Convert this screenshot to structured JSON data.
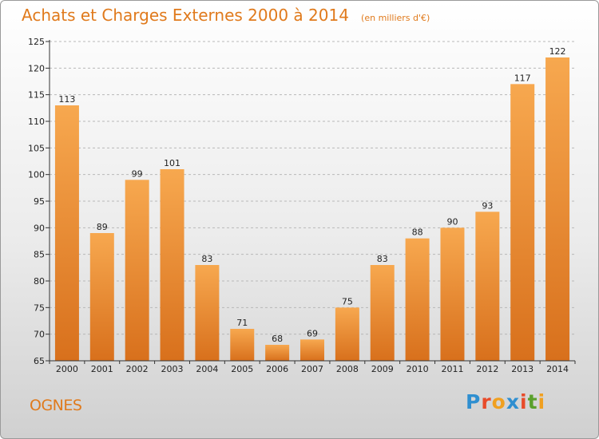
{
  "header": {
    "title": "Achats et Charges Externes 2000 à 2014",
    "unit": "(en milliers d'€)"
  },
  "footer": {
    "town": "OGNES",
    "brand": "Proxiti",
    "brand_letters": [
      {
        "ch": "P",
        "color": "#2f8fd0"
      },
      {
        "ch": "r",
        "color": "#e84b2a"
      },
      {
        "ch": "o",
        "color": "#f0a020"
      },
      {
        "ch": "x",
        "color": "#2f8fd0"
      },
      {
        "ch": "i",
        "color": "#e84b2a"
      },
      {
        "ch": "t",
        "color": "#5aa02c"
      },
      {
        "ch": "i",
        "color": "#f0a020"
      }
    ]
  },
  "colors": {
    "bar_light": "#f7a84f",
    "bar_dark": "#d8701c",
    "axis": "#333333",
    "grid": "#b8b8b8",
    "title": "#e07a1c"
  },
  "chart_data": {
    "type": "bar",
    "title": "Achats et Charges Externes 2000 à 2014",
    "subtitle": "(en milliers d'€)",
    "xlabel": "",
    "ylabel": "",
    "categories": [
      "2000",
      "2001",
      "2002",
      "2003",
      "2004",
      "2005",
      "2006",
      "2007",
      "2008",
      "2009",
      "2010",
      "2011",
      "2012",
      "2013",
      "2014"
    ],
    "values": [
      113,
      89,
      99,
      101,
      83,
      71,
      68,
      69,
      75,
      83,
      88,
      90,
      93,
      117,
      122
    ],
    "ylim": [
      65,
      125
    ],
    "yticks": [
      65,
      70,
      75,
      80,
      85,
      90,
      95,
      100,
      105,
      110,
      115,
      120,
      125
    ],
    "grid": true,
    "legend": "none"
  }
}
